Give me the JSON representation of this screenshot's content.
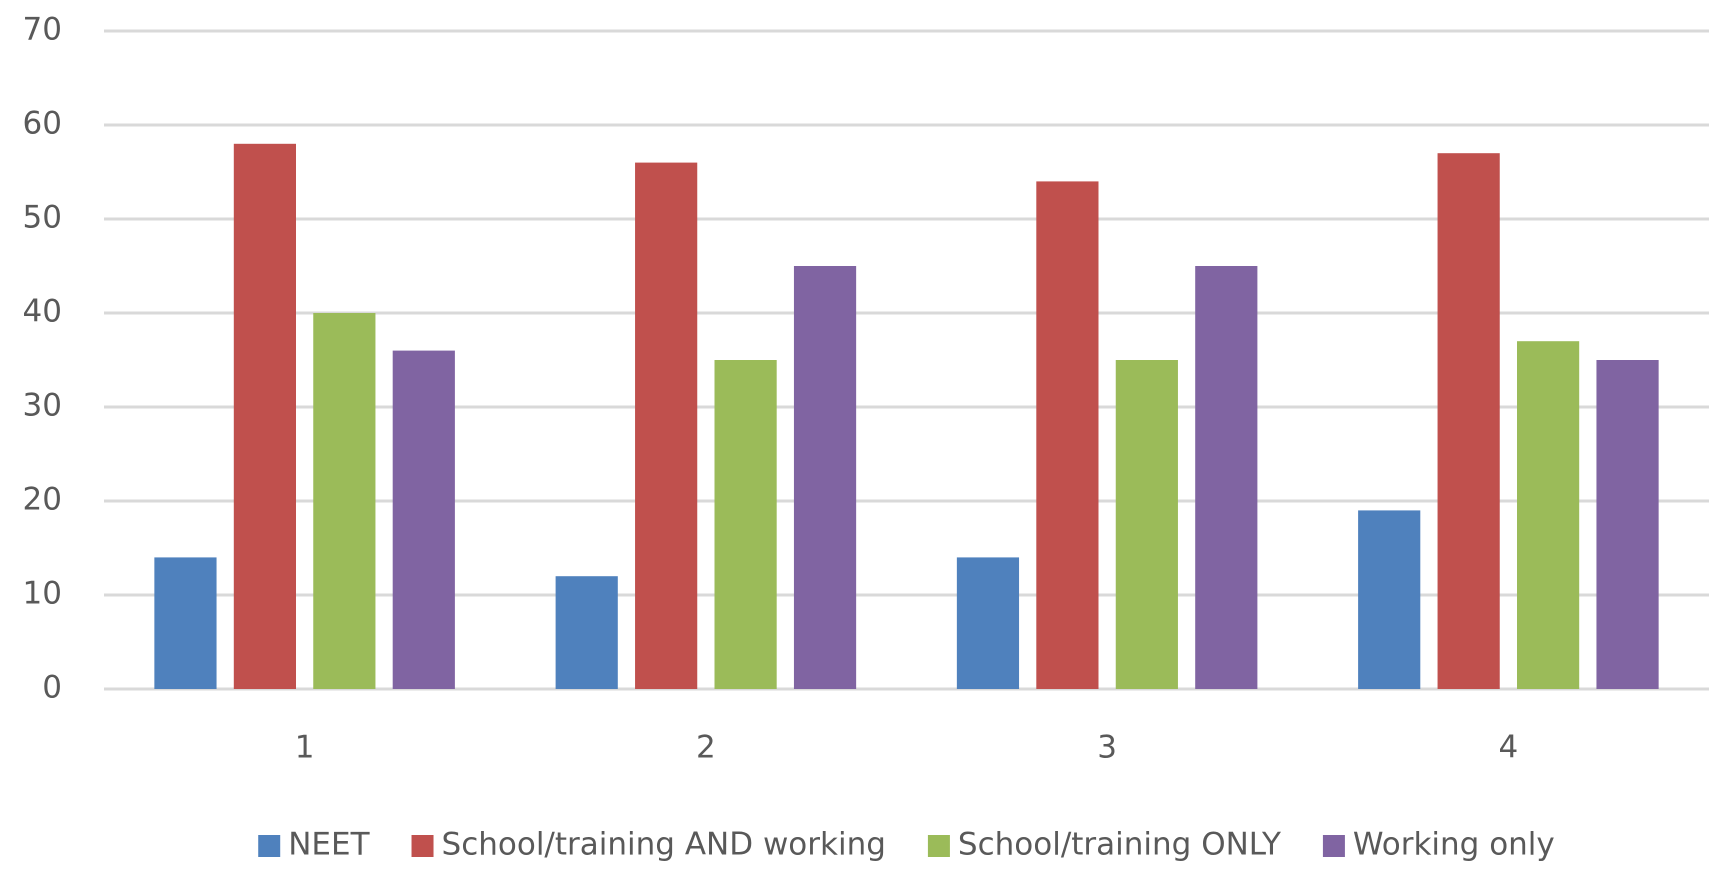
{
  "chart_data": {
    "type": "bar",
    "categories": [
      "1",
      "2",
      "3",
      "4"
    ],
    "series": [
      {
        "name": "NEET",
        "color": "#4f81bd",
        "values": [
          14,
          12,
          14,
          19
        ]
      },
      {
        "name": "School/training AND working",
        "color": "#c0504d",
        "values": [
          58,
          56,
          54,
          57
        ]
      },
      {
        "name": "School/training ONLY",
        "color": "#9bbb59",
        "values": [
          40,
          35,
          35,
          37
        ]
      },
      {
        "name": "Working only",
        "color": "#8064a2",
        "values": [
          36,
          45,
          45,
          35
        ]
      }
    ],
    "ylim": [
      0,
      70
    ],
    "yticks": [
      0,
      10,
      20,
      30,
      40,
      50,
      60,
      70
    ],
    "grid": true,
    "legend": "bottom"
  }
}
